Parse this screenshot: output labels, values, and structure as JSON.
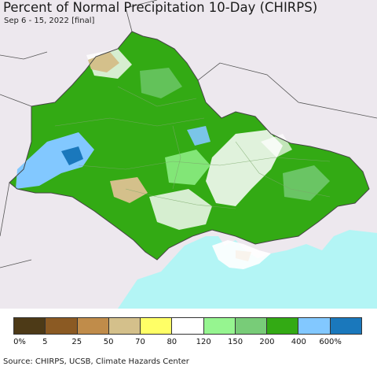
{
  "title": "Percent of Normal Precipitation 10-Day (CHIRPS)",
  "subtitle": "Sep 6 - 15, 2022 [final]",
  "source": "Source: CHIRPS, UCSB, Climate Hazards Center",
  "legend": {
    "colors": [
      "#4d3a17",
      "#8b5a23",
      "#c08c4a",
      "#d4c08b",
      "#ffff66",
      "#ffffff",
      "#96f590",
      "#78cc78",
      "#33aa14",
      "#82c8ff",
      "#1a78bc"
    ],
    "ticks": [
      "0%",
      "5",
      "25",
      "50",
      "70",
      "80",
      "120",
      "150",
      "200",
      "400",
      "600%"
    ]
  },
  "map": {
    "background_color": "#ede8ee",
    "sea_color": "#b3f5f5",
    "land_color": "#33aa14",
    "border_color": "#555555"
  }
}
